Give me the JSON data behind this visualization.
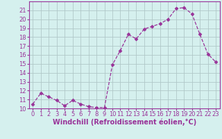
{
  "hours": [
    0,
    1,
    2,
    3,
    4,
    5,
    6,
    7,
    8,
    9,
    10,
    11,
    12,
    13,
    14,
    15,
    16,
    17,
    18,
    19,
    20,
    21,
    22,
    23
  ],
  "values": [
    10.5,
    11.7,
    11.3,
    10.9,
    10.3,
    10.9,
    10.5,
    10.2,
    10.1,
    10.1,
    14.9,
    16.5,
    18.3,
    17.8,
    18.9,
    19.2,
    19.5,
    20.0,
    21.2,
    21.3,
    20.6,
    18.3,
    16.1,
    15.2
  ],
  "line_color": "#993399",
  "marker": "D",
  "marker_size": 2.5,
  "bg_color": "#d5f0ee",
  "grid_color": "#b0c8c8",
  "xlabel": "Windchill (Refroidissement éolien,°C)",
  "ylim": [
    10,
    22
  ],
  "xlim_min": -0.5,
  "xlim_max": 23.5,
  "yticks": [
    10,
    11,
    12,
    13,
    14,
    15,
    16,
    17,
    18,
    19,
    20,
    21
  ],
  "xticks": [
    0,
    1,
    2,
    3,
    4,
    5,
    6,
    7,
    8,
    9,
    10,
    11,
    12,
    13,
    14,
    15,
    16,
    17,
    18,
    19,
    20,
    21,
    22,
    23
  ],
  "tick_fontsize": 6,
  "xlabel_fontsize": 7
}
